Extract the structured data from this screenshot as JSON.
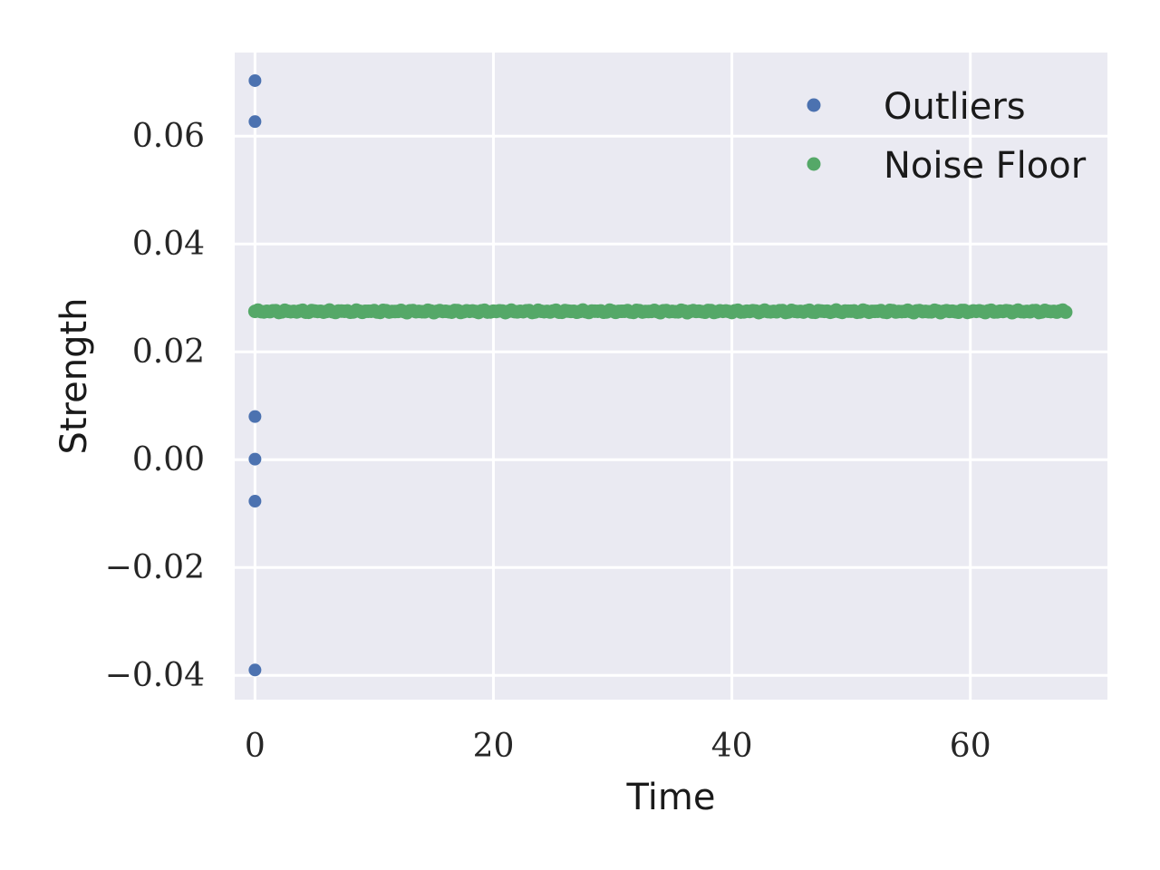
{
  "colors": {
    "plot_bg": "#EAEAF2",
    "grid": "#FFFFFF",
    "outliers": "#4C72B0",
    "noise_floor": "#55A868",
    "text": "#262626"
  },
  "chart_data": {
    "type": "scatter",
    "title": "",
    "xlabel": "Time",
    "ylabel": "Strength",
    "xlim": [
      -1.7,
      71.5
    ],
    "ylim": [
      -0.0445,
      0.0755
    ],
    "x_ticks": [
      0,
      20,
      40,
      60
    ],
    "y_ticks": [
      -0.04,
      -0.02,
      0.0,
      0.02,
      0.04,
      0.06
    ],
    "x_tick_labels": [
      "0",
      "20",
      "40",
      "60"
    ],
    "y_tick_labels": [
      "−0.04",
      "−0.02",
      "0.00",
      "0.02",
      "0.04",
      "0.06"
    ],
    "grid": true,
    "legend_position": "top-right",
    "series": [
      {
        "name": "Outliers",
        "color_key": "outliers",
        "points": [
          {
            "x": 0,
            "y": 0.0703
          },
          {
            "x": 0,
            "y": 0.0627
          },
          {
            "x": 0,
            "y": 0.008
          },
          {
            "x": 0,
            "y": 0.0001
          },
          {
            "x": 0,
            "y": -0.0077
          },
          {
            "x": 0,
            "y": -0.039
          }
        ]
      },
      {
        "name": "Noise Floor",
        "color_key": "noise_floor",
        "x_start": 0,
        "x_end": 68,
        "x_step": 0.25,
        "y": 0.0275
      }
    ]
  }
}
